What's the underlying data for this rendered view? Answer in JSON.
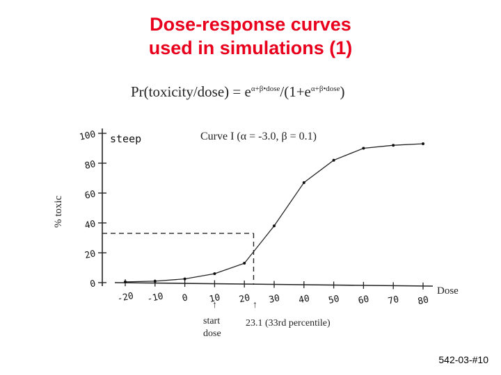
{
  "title_line1": "Dose-response curves",
  "title_line2": "used in simulations (1)",
  "formula": {
    "lhs": "Pr(toxicity/dose) = e",
    "exp": "α+β•dose",
    "mid": "/(1+e",
    "end": ")"
  },
  "slide_id": "542-03-#10",
  "chart_data": {
    "type": "line",
    "curve_label": "Curve I (α = -3.0, β = 0.1)",
    "corner_label": "steep",
    "xlabel": "Dose",
    "ylabel": "% toxic",
    "xlim": [
      -20,
      80
    ],
    "ylim": [
      0,
      100
    ],
    "x_ticks": [
      -20,
      -10,
      0,
      10,
      20,
      30,
      40,
      50,
      60,
      70,
      80
    ],
    "x_tick_labels": [
      "-20",
      "-10",
      "0",
      "10",
      "20",
      "30",
      "40",
      "50",
      "60",
      "70",
      "80"
    ],
    "y_ticks": [
      0,
      20,
      40,
      60,
      80,
      100
    ],
    "y_tick_labels": [
      "0",
      "20",
      "40",
      "60",
      "80",
      "100"
    ],
    "grid": false,
    "series": [
      {
        "x": [
          -20,
          -10,
          0,
          10,
          20,
          30,
          40,
          50,
          60,
          70,
          80
        ],
        "y": [
          0.5,
          1,
          2.5,
          6,
          13,
          38,
          67,
          82,
          90,
          92,
          93
        ]
      }
    ],
    "reference": {
      "x": 23.1,
      "y": 33
    },
    "annotations": {
      "start_dose": "start dose",
      "percentile": "23.1 (33rd percentile)"
    }
  }
}
